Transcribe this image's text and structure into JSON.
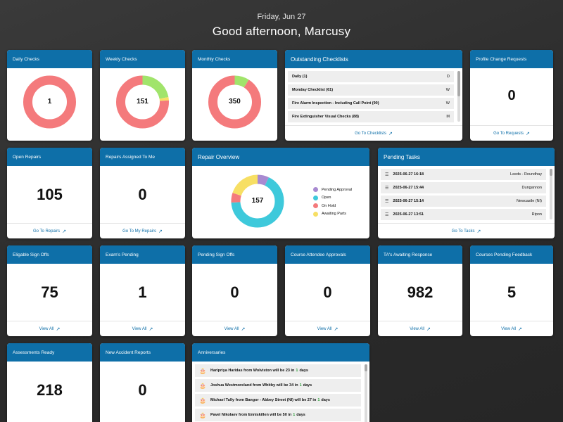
{
  "header": {
    "date": "Friday, Jun 27",
    "greeting": "Good afternoon, Marcusy"
  },
  "colors": {
    "header_blue": "#0e6fa8",
    "red": "#f47a7c",
    "green": "#a1e46b",
    "yellow": "#f7df64",
    "teal": "#3ec9db",
    "purple": "#a88ad1"
  },
  "daily_checks": {
    "title": "Daily Checks",
    "value": "1"
  },
  "weekly_checks": {
    "title": "Weekly Checks",
    "value": "151"
  },
  "monthly_checks": {
    "title": "Monthly Checks",
    "value": "350"
  },
  "outstanding": {
    "title": "Outstanding Checklists",
    "items": [
      {
        "name": "Daily (1)",
        "freq": "D"
      },
      {
        "name": "Monday Checklist (61)",
        "freq": "W"
      },
      {
        "name": "Fire Alarm Inspection - Including Call Point (90)",
        "freq": "W"
      },
      {
        "name": "Fire Extinguisher Visual Checks (88)",
        "freq": "M"
      }
    ],
    "link": "Go To Checklists"
  },
  "profile_change": {
    "title": "Profile Change Requests",
    "value": "0",
    "link": "Go To Requests"
  },
  "open_repairs": {
    "title": "Open Repairs",
    "value": "105",
    "link": "Go To Repairs"
  },
  "repairs_assigned": {
    "title": "Repairs Assigned To Me",
    "value": "0",
    "link": "Go To My Repairs"
  },
  "repair_overview": {
    "title": "Repair Overview",
    "total": "157",
    "legend": [
      "Pending Approval",
      "Open",
      "On Hold",
      "Awaiting Parts"
    ]
  },
  "pending_tasks": {
    "title": "Pending Tasks",
    "items": [
      {
        "datetime": "2025-06-27 16:18",
        "location": "Leeds - Roundhay"
      },
      {
        "datetime": "2025-06-27 15:44",
        "location": "Dungannon"
      },
      {
        "datetime": "2025-06-27 15:14",
        "location": "Newcastle (NI)"
      },
      {
        "datetime": "2025-06-27 13:51",
        "location": "Ripon"
      }
    ],
    "link": "Go To Tasks"
  },
  "eligable_signoffs": {
    "title": "Eligable Sign Offs",
    "value": "75",
    "link": "View All"
  },
  "exams_pending": {
    "title": "Exam's Pending",
    "value": "1",
    "link": "View All"
  },
  "pending_signoffs": {
    "title": "Pending Sign Offs",
    "value": "0",
    "link": "View All"
  },
  "course_attendee": {
    "title": "Course Attendee Approvals",
    "value": "0",
    "link": "View All"
  },
  "ta_awaiting": {
    "title": "TA's Awaiting Response",
    "value": "982",
    "link": "View All"
  },
  "courses_feedback": {
    "title": "Courses Pending Feedback",
    "value": "5",
    "link": "View All"
  },
  "assessments_ready": {
    "title": "Assessments Ready",
    "value": "218"
  },
  "new_accidents": {
    "title": "New Accident Reports",
    "value": "0"
  },
  "anniversaries": {
    "title": "Anniversaries",
    "items": [
      {
        "pre": "Haripriya Haridas from Wolviston will be 23 in",
        "num": "1",
        "post": "days"
      },
      {
        "pre": "Joshua Westmoreland from Whitby will be 34 in",
        "num": "1",
        "post": "days"
      },
      {
        "pre": "Michael Tully from Bangor - Abbey Street (NI) will be 27 in",
        "num": "1",
        "post": "days"
      },
      {
        "pre": "Pavel Nikolaev from Enniskillen will be 50 in",
        "num": "1",
        "post": "days"
      }
    ]
  },
  "charts": {
    "daily": [
      {
        "label": "remaining",
        "value": 1,
        "color": "#f47a7c"
      }
    ],
    "weekly": [
      {
        "label": "done",
        "value": 0.22,
        "color": "#a1e46b"
      },
      {
        "label": "partial",
        "value": 0.02,
        "color": "#f7df64"
      },
      {
        "label": "remaining",
        "value": 0.76,
        "color": "#f47a7c"
      }
    ],
    "monthly": [
      {
        "label": "done",
        "value": 0.09,
        "color": "#a1e46b"
      },
      {
        "label": "remaining",
        "value": 0.91,
        "color": "#f47a7c"
      }
    ],
    "repairs": [
      {
        "label": "Pending Approval",
        "value": 0.07,
        "color": "#a88ad1"
      },
      {
        "label": "Open",
        "value": 0.67,
        "color": "#3ec9db"
      },
      {
        "label": "On Hold",
        "value": 0.06,
        "color": "#f47a7c"
      },
      {
        "label": "Awaiting Parts",
        "value": 0.2,
        "color": "#f7df64"
      }
    ]
  }
}
